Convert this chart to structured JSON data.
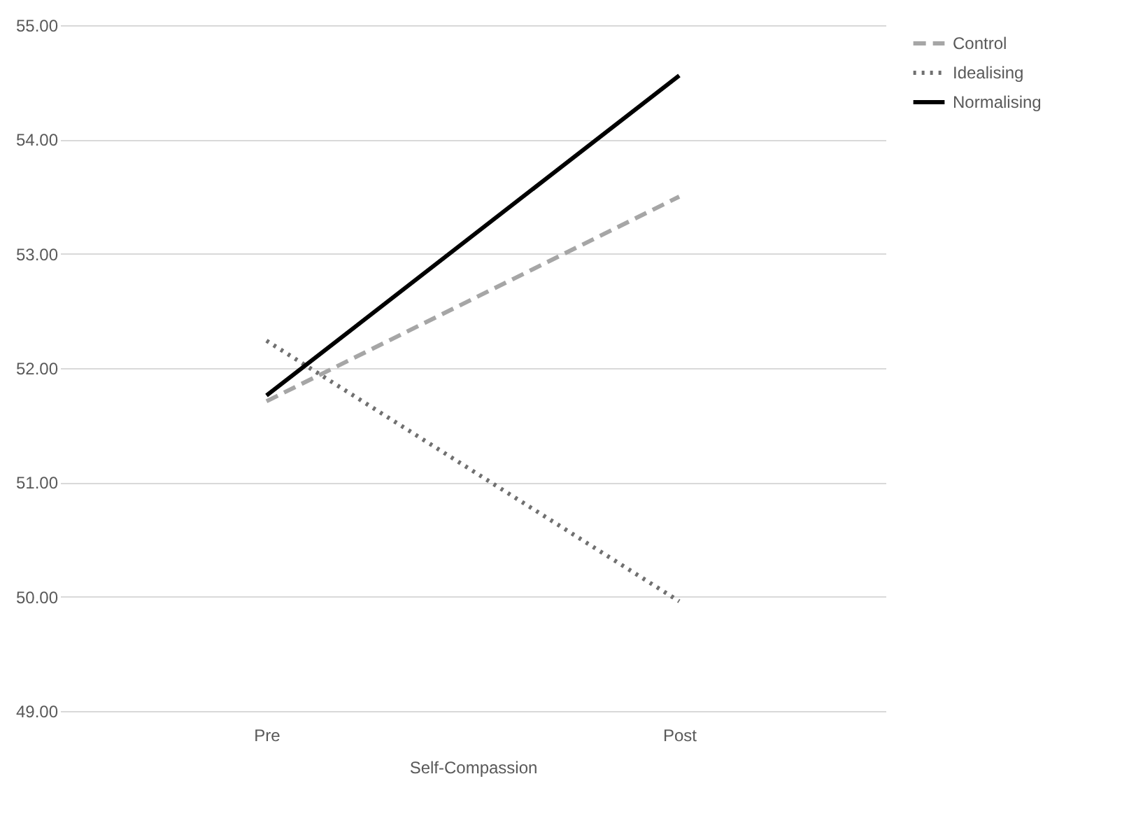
{
  "chart_data": {
    "type": "line",
    "xlabel": "Self-Compassion",
    "categories": [
      "Pre",
      "Post"
    ],
    "series": [
      {
        "name": "Control",
        "color": "#a6a6a6",
        "line_style": "dashed",
        "values": [
          51.71,
          53.5
        ]
      },
      {
        "name": "Idealising",
        "color": "#707070",
        "line_style": "dotted",
        "values": [
          52.24,
          49.96
        ]
      },
      {
        "name": "Normalising",
        "color": "#000000",
        "line_style": "solid",
        "values": [
          51.76,
          54.56
        ]
      }
    ],
    "ylim": [
      49,
      55
    ],
    "yticks": [
      {
        "value": 49,
        "label": "49.00"
      },
      {
        "value": 50,
        "label": "50.00"
      },
      {
        "value": 51,
        "label": "51.00"
      },
      {
        "value": 52,
        "label": "52.00"
      },
      {
        "value": 53,
        "label": "53.00"
      },
      {
        "value": 54,
        "label": "54.00"
      },
      {
        "value": 55,
        "label": "55.00"
      }
    ],
    "grid": "y",
    "legend": "right",
    "marker": "none"
  }
}
